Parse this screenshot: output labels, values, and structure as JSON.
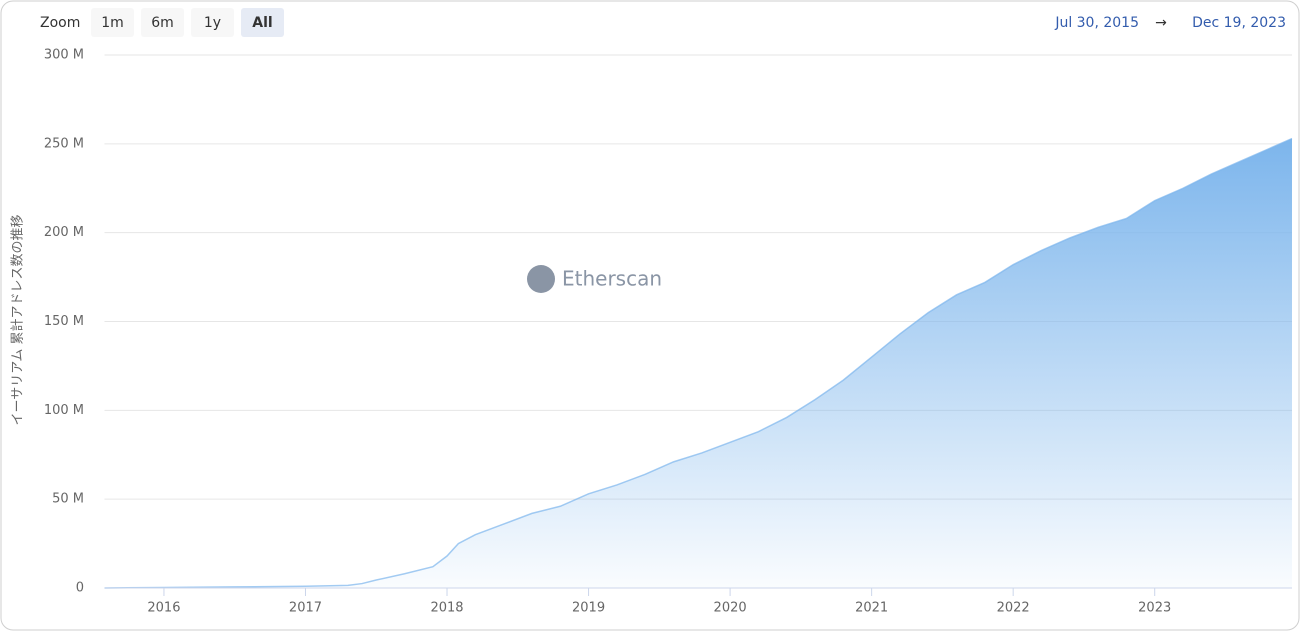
{
  "chart_data": {
    "type": "area",
    "y_label": "イーサリアム 累計アドレス数の推移",
    "watermark": "Etherscan",
    "zoom": {
      "label": "Zoom",
      "buttons": [
        "1m",
        "6m",
        "1y",
        "All"
      ],
      "selected": 3
    },
    "range": {
      "from": "Jul 30, 2015",
      "arrow": "→",
      "to": "Dec 19, 2023"
    },
    "color": "#7cb5ec",
    "grid": true,
    "x": [
      2015.58,
      2016,
      2016.5,
      2017,
      2017.3,
      2017.4,
      2017.5,
      2017.7,
      2017.9,
      2018.0,
      2018.08,
      2018.2,
      2018.4,
      2018.6,
      2018.8,
      2019.0,
      2019.2,
      2019.4,
      2019.6,
      2019.8,
      2020.0,
      2020.2,
      2020.4,
      2020.6,
      2020.8,
      2021.0,
      2021.2,
      2021.4,
      2021.6,
      2021.8,
      2022.0,
      2022.2,
      2022.4,
      2022.6,
      2022.8,
      2023.0,
      2023.2,
      2023.4,
      2023.6,
      2023.8,
      2023.97
    ],
    "values": [
      0,
      0.3,
      0.6,
      1,
      1.5,
      2.5,
      4.5,
      8,
      12,
      18,
      25,
      30,
      36,
      42,
      46,
      53,
      58,
      64,
      71,
      76,
      82,
      88,
      96,
      106,
      117,
      130,
      143,
      155,
      165,
      172,
      182,
      190,
      197,
      203,
      208,
      218,
      225,
      233,
      240,
      247,
      253
    ],
    "xlim": [
      2015.58,
      2023.97
    ],
    "xticks": [
      2016,
      2017,
      2018,
      2019,
      2020,
      2021,
      2022,
      2023
    ],
    "ylim": [
      0,
      300
    ],
    "yticks": [
      0,
      {
        "value": 50,
        "label": "50 M"
      },
      {
        "value": 100,
        "label": "100 M"
      },
      {
        "value": 150,
        "label": "150 M"
      },
      {
        "value": 200,
        "label": "200 M"
      },
      {
        "value": 250,
        "label": "250 M"
      },
      {
        "value": 300,
        "label": "300 M"
      }
    ]
  }
}
